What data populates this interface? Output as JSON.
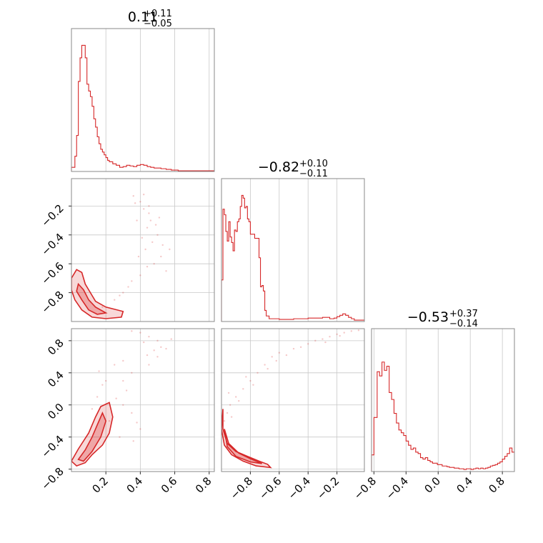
{
  "chart_data": {
    "type": "corner",
    "color": "#d62728",
    "parameters": [
      {
        "median": "0.11",
        "plus": "+0.11",
        "minus": "−0.05",
        "range": [
          0.0,
          0.83
        ]
      },
      {
        "median": "−0.82",
        "plus": "+0.10",
        "minus": "−0.11",
        "range": [
          -1.0,
          -0.01
        ]
      },
      {
        "median": "−0.53",
        "plus": "+0.37",
        "minus": "−0.14",
        "range": [
          -0.83,
          0.95
        ]
      }
    ],
    "ticks": [
      {
        "values": [
          0.2,
          0.4,
          0.6,
          0.8
        ],
        "labels": [
          "0.2",
          "0.4",
          "0.6",
          "0.8"
        ]
      },
      {
        "values": [
          -0.8,
          -0.6,
          -0.4,
          -0.2
        ],
        "labels": [
          "−0.8",
          "−0.6",
          "−0.4",
          "−0.2"
        ]
      },
      {
        "values": [
          -0.8,
          -0.4,
          0.0,
          0.4,
          0.8
        ],
        "labels": [
          "−0.8",
          "−0.4",
          "0.0",
          "0.4",
          "0.8"
        ]
      }
    ],
    "histograms": [
      {
        "param": 0,
        "bins": [
          0.0,
          0.02,
          0.03,
          0.04,
          0.05,
          0.06,
          0.07,
          0.08,
          0.09,
          0.1,
          0.11,
          0.12,
          0.13,
          0.14,
          0.15,
          0.16,
          0.17,
          0.18,
          0.19,
          0.2,
          0.21,
          0.22,
          0.24,
          0.26,
          0.28,
          0.3,
          0.32,
          0.34,
          0.36,
          0.38,
          0.4,
          0.42,
          0.44,
          0.46,
          0.48,
          0.5,
          0.52,
          0.55,
          0.58,
          0.62,
          0.83
        ],
        "counts": [
          0.03,
          0.11,
          0.26,
          0.65,
          0.82,
          0.91,
          0.91,
          0.82,
          0.63,
          0.58,
          0.54,
          0.47,
          0.38,
          0.32,
          0.25,
          0.2,
          0.16,
          0.14,
          0.12,
          0.1,
          0.08,
          0.07,
          0.055,
          0.045,
          0.03,
          0.035,
          0.045,
          0.04,
          0.035,
          0.045,
          0.05,
          0.045,
          0.035,
          0.03,
          0.025,
          0.025,
          0.02,
          0.015,
          0.01,
          0.005
        ]
      },
      {
        "param": 1,
        "bins": [
          -1.0,
          -0.99,
          -0.98,
          -0.97,
          -0.96,
          -0.95,
          -0.94,
          -0.93,
          -0.92,
          -0.91,
          -0.9,
          -0.89,
          -0.88,
          -0.87,
          -0.86,
          -0.85,
          -0.84,
          -0.83,
          -0.82,
          -0.81,
          -0.8,
          -0.79,
          -0.78,
          -0.77,
          -0.76,
          -0.75,
          -0.74,
          -0.73,
          -0.72,
          -0.71,
          -0.7,
          -0.69,
          -0.67,
          -0.6,
          -0.5,
          -0.4,
          -0.35,
          -0.3,
          -0.25,
          -0.22,
          -0.2,
          -0.18,
          -0.16,
          -0.14,
          -0.12,
          -0.1,
          -0.08,
          -0.01
        ],
        "counts": [
          0.3,
          0.81,
          0.77,
          0.65,
          0.58,
          0.72,
          0.61,
          0.57,
          0.51,
          0.66,
          0.65,
          0.72,
          0.74,
          0.83,
          0.91,
          0.89,
          0.82,
          0.83,
          0.74,
          0.72,
          0.63,
          0.63,
          0.63,
          0.6,
          0.6,
          0.6,
          0.46,
          0.25,
          0.26,
          0.22,
          0.08,
          0.04,
          0.02,
          0.015,
          0.02,
          0.025,
          0.025,
          0.03,
          0.02,
          0.025,
          0.035,
          0.045,
          0.055,
          0.045,
          0.03,
          0.02,
          0.01
        ]
      },
      {
        "param": 2,
        "bins": [
          -0.83,
          -0.8,
          -0.76,
          -0.73,
          -0.7,
          -0.67,
          -0.64,
          -0.61,
          -0.58,
          -0.55,
          -0.52,
          -0.49,
          -0.46,
          -0.43,
          -0.4,
          -0.37,
          -0.34,
          -0.31,
          -0.28,
          -0.25,
          -0.22,
          -0.19,
          -0.16,
          -0.13,
          -0.1,
          -0.07,
          -0.04,
          -0.01,
          0.02,
          0.05,
          0.08,
          0.11,
          0.14,
          0.17,
          0.2,
          0.23,
          0.26,
          0.29,
          0.32,
          0.35,
          0.38,
          0.41,
          0.44,
          0.47,
          0.5,
          0.53,
          0.56,
          0.59,
          0.62,
          0.65,
          0.68,
          0.71,
          0.74,
          0.77,
          0.8,
          0.83,
          0.86,
          0.89,
          0.92,
          0.95
        ],
        "counts": [
          0.12,
          0.39,
          0.72,
          0.69,
          0.79,
          0.73,
          0.76,
          0.57,
          0.52,
          0.42,
          0.35,
          0.3,
          0.28,
          0.26,
          0.22,
          0.19,
          0.16,
          0.17,
          0.14,
          0.13,
          0.1,
          0.09,
          0.1,
          0.08,
          0.07,
          0.06,
          0.06,
          0.05,
          0.05,
          0.04,
          0.04,
          0.035,
          0.03,
          0.03,
          0.025,
          0.025,
          0.02,
          0.02,
          0.015,
          0.02,
          0.02,
          0.015,
          0.02,
          0.025,
          0.02,
          0.025,
          0.02,
          0.025,
          0.03,
          0.04,
          0.045,
          0.05,
          0.06,
          0.07,
          0.09,
          0.11,
          0.13,
          0.17,
          0.14
        ]
      }
    ],
    "scatter": [
      {
        "x_param": 0,
        "y_param": 1,
        "points": [
          [
            0.36,
            -0.13
          ],
          [
            0.4,
            -0.17
          ],
          [
            0.42,
            -0.22
          ],
          [
            0.45,
            -0.2
          ],
          [
            0.38,
            -0.3
          ],
          [
            0.44,
            -0.35
          ],
          [
            0.5,
            -0.4
          ],
          [
            0.47,
            -0.45
          ],
          [
            0.43,
            -0.5
          ],
          [
            0.52,
            -0.55
          ],
          [
            0.48,
            -0.6
          ],
          [
            0.55,
            -0.65
          ],
          [
            0.4,
            -0.68
          ],
          [
            0.35,
            -0.72
          ],
          [
            0.3,
            -0.8
          ],
          [
            0.25,
            -0.85
          ],
          [
            0.18,
            -0.9
          ],
          [
            0.45,
            -0.25
          ],
          [
            0.41,
            -0.42
          ],
          [
            0.46,
            -0.3
          ],
          [
            0.53,
            -0.47
          ],
          [
            0.39,
            -0.55
          ],
          [
            0.44,
            -0.62
          ],
          [
            0.37,
            -0.18
          ],
          [
            0.33,
            -0.76
          ],
          [
            0.28,
            -0.82
          ],
          [
            0.57,
            -0.5
          ],
          [
            0.49,
            -0.33
          ],
          [
            0.42,
            -0.12
          ],
          [
            0.51,
            -0.28
          ]
        ]
      },
      {
        "x_param": 0,
        "y_param": 2,
        "points": [
          [
            0.35,
            0.92
          ],
          [
            0.4,
            0.9
          ],
          [
            0.45,
            0.85
          ],
          [
            0.5,
            0.8
          ],
          [
            0.55,
            0.7
          ],
          [
            0.5,
            0.6
          ],
          [
            0.45,
            0.5
          ],
          [
            0.35,
            0.4
          ],
          [
            0.3,
            0.3
          ],
          [
            0.25,
            0.5
          ],
          [
            0.2,
            0.3
          ],
          [
            0.15,
            0.1
          ],
          [
            0.3,
            0.0
          ],
          [
            0.35,
            -0.1
          ],
          [
            0.4,
            -0.3
          ],
          [
            0.28,
            -0.4
          ],
          [
            0.22,
            -0.2
          ],
          [
            0.18,
            0.25
          ],
          [
            0.42,
            0.78
          ],
          [
            0.52,
            0.72
          ],
          [
            0.32,
            0.18
          ],
          [
            0.26,
            0.08
          ],
          [
            0.38,
            -0.22
          ],
          [
            0.44,
            0.62
          ],
          [
            0.58,
            0.82
          ],
          [
            0.16,
            0.42
          ],
          [
            0.12,
            -0.05
          ],
          [
            0.3,
            0.55
          ],
          [
            0.48,
            0.68
          ],
          [
            0.36,
            -0.45
          ]
        ]
      },
      {
        "x_param": 1,
        "y_param": 2,
        "points": [
          [
            -0.98,
            -0.2
          ],
          [
            -0.96,
            -0.1
          ],
          [
            -0.94,
            0.0
          ],
          [
            -0.9,
            0.1
          ],
          [
            -0.85,
            0.2
          ],
          [
            -0.8,
            0.3
          ],
          [
            -0.75,
            0.4
          ],
          [
            -0.7,
            0.5
          ],
          [
            -0.65,
            0.6
          ],
          [
            -0.6,
            0.65
          ],
          [
            -0.5,
            0.7
          ],
          [
            -0.4,
            0.76
          ],
          [
            -0.3,
            0.82
          ],
          [
            -0.25,
            0.85
          ],
          [
            -0.2,
            0.88
          ],
          [
            -0.15,
            0.9
          ],
          [
            -0.1,
            0.92
          ],
          [
            -0.05,
            0.93
          ],
          [
            -0.93,
            -0.15
          ],
          [
            -0.88,
            0.05
          ],
          [
            -0.78,
            0.25
          ],
          [
            -0.68,
            0.45
          ],
          [
            -0.55,
            0.62
          ],
          [
            -0.45,
            0.72
          ],
          [
            -0.35,
            0.8
          ],
          [
            -0.18,
            0.86
          ],
          [
            -0.95,
            0.15
          ],
          [
            -0.83,
            0.35
          ],
          [
            -0.62,
            0.55
          ],
          [
            -0.28,
            0.78
          ]
        ]
      }
    ],
    "contours": [
      {
        "x_param": 0,
        "y_param": 1,
        "outer": [
          [
            0.0,
            -0.7
          ],
          [
            0.03,
            -0.64
          ],
          [
            0.06,
            -0.66
          ],
          [
            0.08,
            -0.74
          ],
          [
            0.11,
            -0.8
          ],
          [
            0.14,
            -0.86
          ],
          [
            0.2,
            -0.9
          ],
          [
            0.3,
            -0.93
          ],
          [
            0.29,
            -0.97
          ],
          [
            0.2,
            -0.98
          ],
          [
            0.12,
            -0.97
          ],
          [
            0.06,
            -0.92
          ],
          [
            0.02,
            -0.85
          ],
          [
            0.0,
            -0.78
          ]
        ],
        "inner": [
          [
            0.04,
            -0.74
          ],
          [
            0.07,
            -0.78
          ],
          [
            0.1,
            -0.85
          ],
          [
            0.14,
            -0.9
          ],
          [
            0.2,
            -0.94
          ],
          [
            0.15,
            -0.95
          ],
          [
            0.1,
            -0.92
          ],
          [
            0.06,
            -0.85
          ],
          [
            0.03,
            -0.79
          ]
        ]
      },
      {
        "x_param": 0,
        "y_param": 2,
        "outer": [
          [
            0.0,
            -0.7
          ],
          [
            0.04,
            -0.55
          ],
          [
            0.1,
            -0.35
          ],
          [
            0.14,
            -0.15
          ],
          [
            0.17,
            -0.02
          ],
          [
            0.22,
            0.03
          ],
          [
            0.24,
            -0.15
          ],
          [
            0.22,
            -0.35
          ],
          [
            0.18,
            -0.5
          ],
          [
            0.12,
            -0.62
          ],
          [
            0.08,
            -0.72
          ],
          [
            0.03,
            -0.76
          ]
        ],
        "inner": [
          [
            0.04,
            -0.68
          ],
          [
            0.08,
            -0.56
          ],
          [
            0.12,
            -0.4
          ],
          [
            0.15,
            -0.25
          ],
          [
            0.18,
            -0.1
          ],
          [
            0.2,
            -0.2
          ],
          [
            0.17,
            -0.4
          ],
          [
            0.12,
            -0.58
          ],
          [
            0.07,
            -0.7
          ]
        ]
      },
      {
        "x_param": 1,
        "y_param": 2,
        "outer": [
          [
            -0.99,
            -0.05
          ],
          [
            -0.99,
            -0.3
          ],
          [
            -0.96,
            -0.48
          ],
          [
            -0.9,
            -0.58
          ],
          [
            -0.82,
            -0.64
          ],
          [
            -0.74,
            -0.7
          ],
          [
            -0.68,
            -0.74
          ],
          [
            -0.66,
            -0.78
          ],
          [
            -0.76,
            -0.76
          ],
          [
            -0.85,
            -0.7
          ],
          [
            -0.93,
            -0.62
          ],
          [
            -0.98,
            -0.5
          ],
          [
            -1.0,
            -0.3
          ]
        ],
        "inner": [
          [
            -0.98,
            -0.3
          ],
          [
            -0.95,
            -0.48
          ],
          [
            -0.88,
            -0.6
          ],
          [
            -0.8,
            -0.67
          ],
          [
            -0.72,
            -0.73
          ],
          [
            -0.8,
            -0.71
          ],
          [
            -0.9,
            -0.64
          ],
          [
            -0.96,
            -0.52
          ]
        ]
      }
    ]
  }
}
